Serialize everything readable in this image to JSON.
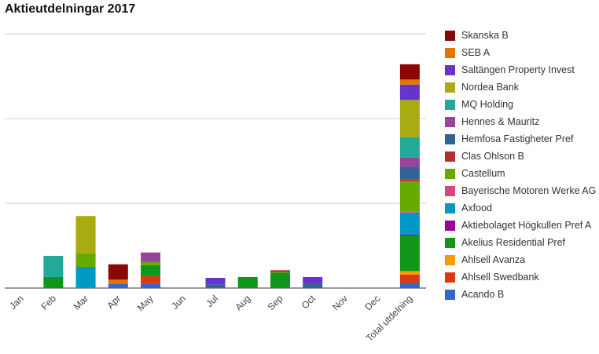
{
  "chart_data": {
    "type": "bar",
    "stacked": true,
    "title": "Aktieutdelningar 2017",
    "categories": [
      "Jan",
      "Feb",
      "Mar",
      "Apr",
      "May",
      "Jun",
      "Jul",
      "Aug",
      "Sep",
      "Oct",
      "Nov",
      "Dec",
      "Total utdelning"
    ],
    "ylim": [
      0,
      300
    ],
    "grid": true,
    "yticks_labeled": false,
    "legend_position": "right",
    "series": [
      {
        "name": "Acando B",
        "color": "#3366cc",
        "values": [
          0,
          0,
          0,
          5,
          5,
          0,
          0,
          0,
          0,
          0,
          0,
          0,
          6
        ]
      },
      {
        "name": "Ahlsell Swedbank",
        "color": "#dc3912",
        "values": [
          0,
          0,
          0,
          0,
          9,
          0,
          0,
          0,
          0,
          0,
          0,
          0,
          10
        ]
      },
      {
        "name": "Ahlsell Avanza",
        "color": "#ff9900",
        "values": [
          0,
          0,
          0,
          0,
          0,
          0,
          0,
          0,
          0,
          0,
          0,
          0,
          4
        ]
      },
      {
        "name": "Akelius Residential Pref",
        "color": "#109618",
        "values": [
          0,
          13,
          0,
          0,
          13,
          0,
          0,
          13,
          18,
          0,
          0,
          0,
          42
        ]
      },
      {
        "name": "Aktiebolaget Högkullen Pref A",
        "color": "#990099",
        "values": [
          0,
          0,
          0,
          0,
          0,
          0,
          0,
          0,
          0,
          0,
          0,
          0,
          1
        ]
      },
      {
        "name": "Axfood",
        "color": "#0099c6",
        "values": [
          0,
          0,
          25,
          0,
          0,
          0,
          0,
          0,
          0,
          0,
          0,
          0,
          26
        ]
      },
      {
        "name": "Bayerische Motoren Werke AG",
        "color": "#dd4477",
        "values": [
          0,
          0,
          0,
          0,
          0,
          0,
          0,
          0,
          0,
          0,
          0,
          0,
          1
        ]
      },
      {
        "name": "Castellum",
        "color": "#66aa00",
        "values": [
          0,
          0,
          16,
          0,
          4,
          0,
          0,
          0,
          1,
          0,
          0,
          0,
          36
        ]
      },
      {
        "name": "Clas Ohlson B",
        "color": "#b82e2e",
        "values": [
          0,
          0,
          0,
          0,
          0,
          0,
          0,
          0,
          2,
          0,
          0,
          0,
          2
        ]
      },
      {
        "name": "Hemfosa Fastigheter Pref",
        "color": "#316395",
        "values": [
          0,
          0,
          0,
          0,
          0,
          0,
          4,
          0,
          0,
          5,
          0,
          0,
          15
        ]
      },
      {
        "name": "Hennes & Mauritz",
        "color": "#994499",
        "values": [
          0,
          0,
          0,
          0,
          11,
          0,
          0,
          0,
          0,
          0,
          0,
          0,
          11
        ]
      },
      {
        "name": "MQ Holding",
        "color": "#22aa99",
        "values": [
          0,
          25,
          0,
          0,
          0,
          0,
          0,
          0,
          0,
          0,
          0,
          0,
          24
        ]
      },
      {
        "name": "Nordea Bank",
        "color": "#aaaa11",
        "values": [
          0,
          0,
          44,
          0,
          0,
          0,
          0,
          0,
          0,
          0,
          0,
          0,
          44
        ]
      },
      {
        "name": "Saltängen Property Invest",
        "color": "#6633cc",
        "values": [
          0,
          0,
          0,
          0,
          0,
          0,
          8,
          0,
          0,
          8,
          0,
          0,
          18
        ]
      },
      {
        "name": "SEB A",
        "color": "#e67300",
        "values": [
          0,
          0,
          0,
          5,
          0,
          0,
          0,
          0,
          0,
          0,
          0,
          0,
          6
        ]
      },
      {
        "name": "Skanska B",
        "color": "#8b0707",
        "values": [
          0,
          0,
          0,
          18,
          0,
          0,
          0,
          0,
          0,
          0,
          0,
          0,
          18
        ]
      }
    ]
  }
}
